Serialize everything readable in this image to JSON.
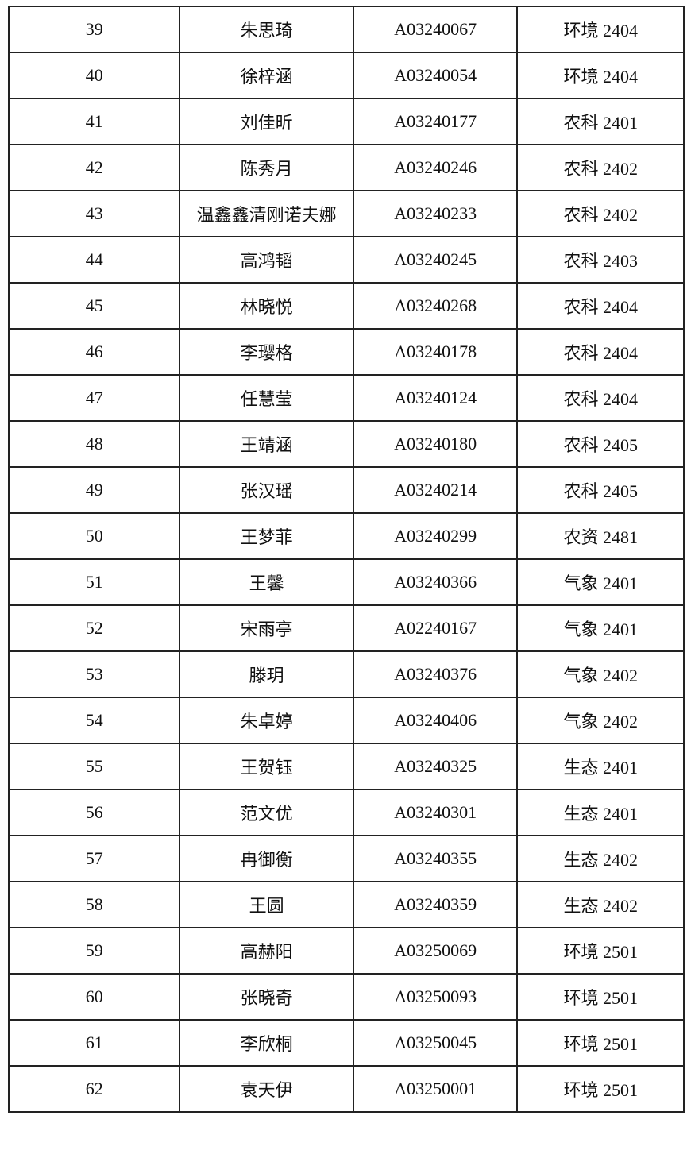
{
  "table": {
    "rows": [
      [
        "39",
        "朱思琦",
        "A03240067",
        "环境 2404"
      ],
      [
        "40",
        "徐梓涵",
        "A03240054",
        "环境 2404"
      ],
      [
        "41",
        "刘佳昕",
        "A03240177",
        "农科 2401"
      ],
      [
        "42",
        "陈秀月",
        "A03240246",
        "农科 2402"
      ],
      [
        "43",
        "温鑫鑫清刚诺夫娜",
        "A03240233",
        "农科 2402"
      ],
      [
        "44",
        "高鸿韬",
        "A03240245",
        "农科 2403"
      ],
      [
        "45",
        "林晓悦",
        "A03240268",
        "农科 2404"
      ],
      [
        "46",
        "李璎格",
        "A03240178",
        "农科 2404"
      ],
      [
        "47",
        "任慧莹",
        "A03240124",
        "农科 2404"
      ],
      [
        "48",
        "王靖涵",
        "A03240180",
        "农科 2405"
      ],
      [
        "49",
        "张汉瑶",
        "A03240214",
        "农科 2405"
      ],
      [
        "50",
        "王梦菲",
        "A03240299",
        "农资 2481"
      ],
      [
        "51",
        "王馨",
        "A03240366",
        "气象 2401"
      ],
      [
        "52",
        "宋雨亭",
        "A02240167",
        "气象 2401"
      ],
      [
        "53",
        "滕玥",
        "A03240376",
        "气象 2402"
      ],
      [
        "54",
        "朱卓婷",
        "A03240406",
        "气象 2402"
      ],
      [
        "55",
        "王贺钰",
        "A03240325",
        "生态 2401"
      ],
      [
        "56",
        "范文优",
        "A03240301",
        "生态 2401"
      ],
      [
        "57",
        "冉御衡",
        "A03240355",
        "生态 2402"
      ],
      [
        "58",
        "王圆",
        "A03240359",
        "生态 2402"
      ],
      [
        "59",
        "高赫阳",
        "A03250069",
        "环境 2501"
      ],
      [
        "60",
        "张晓奇",
        "A03250093",
        "环境 2501"
      ],
      [
        "61",
        "李欣桐",
        "A03250045",
        "环境 2501"
      ],
      [
        "62",
        "袁天伊",
        "A03250001",
        "环境 2501"
      ]
    ]
  }
}
